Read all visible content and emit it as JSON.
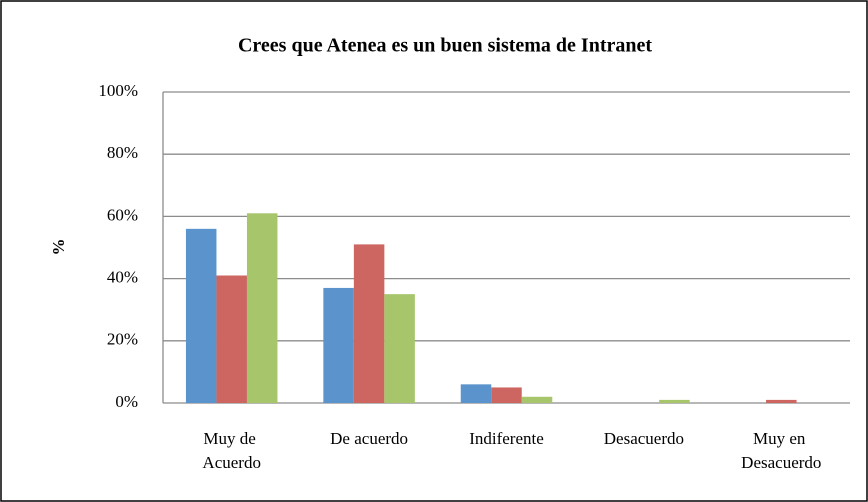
{
  "chart_data": {
    "type": "bar",
    "title": "Crees que Atenea es un buen sistema de Intranet",
    "y_label": "%",
    "categories": [
      "Muy de Acuerdo",
      "De acuerdo",
      "Indiferente",
      "Desacuerdo",
      "Muy en Desacuerdo"
    ],
    "series": [
      {
        "color": "#5b93cc",
        "values": [
          56,
          37,
          6,
          0,
          0
        ]
      },
      {
        "color": "#cd6660",
        "values": [
          41,
          51,
          5,
          0,
          1
        ]
      },
      {
        "color": "#a7c56b",
        "values": [
          61,
          35,
          2,
          1,
          0
        ]
      }
    ],
    "ylim": [
      0,
      100
    ],
    "yticks": [
      {
        "value": 0,
        "label": "0%"
      },
      {
        "value": 20,
        "label": "20%"
      },
      {
        "value": 40,
        "label": "40%"
      },
      {
        "value": 60,
        "label": "60%"
      },
      {
        "value": 80,
        "label": "80%"
      },
      {
        "value": 100,
        "label": "100%"
      }
    ],
    "grid": true
  }
}
